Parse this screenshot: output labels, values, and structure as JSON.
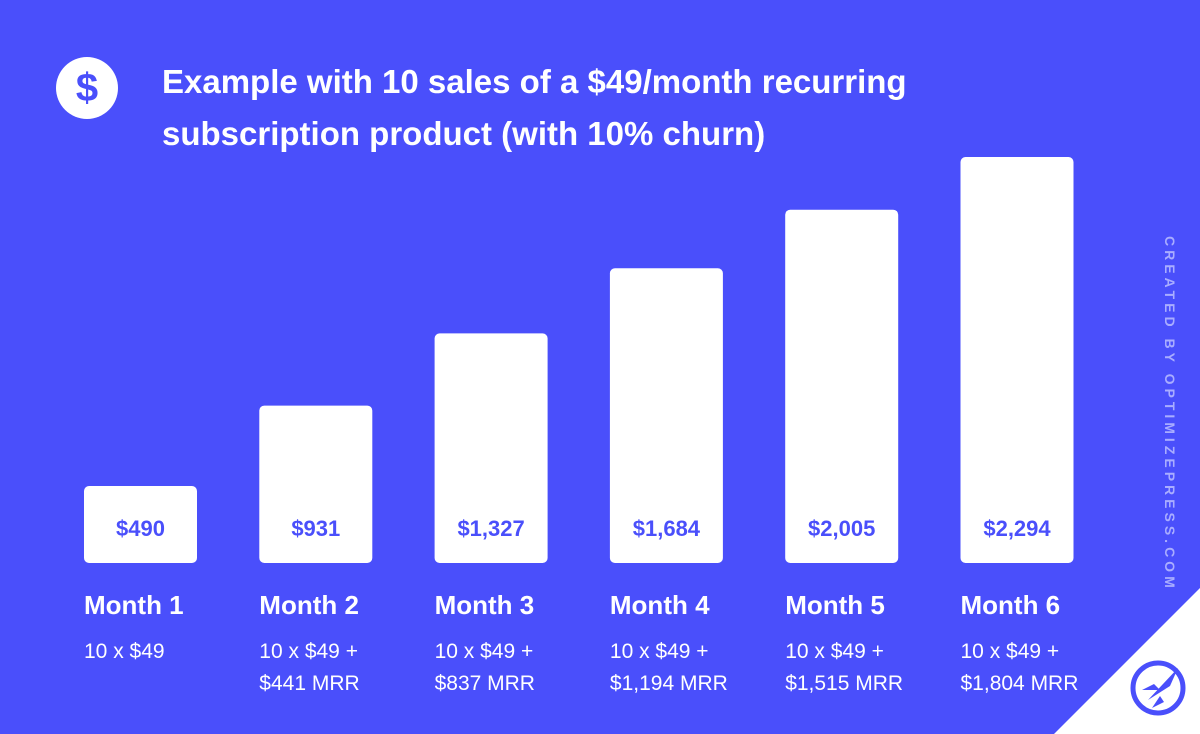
{
  "title_lines": [
    "Example with 10 sales of a $49/month recurring",
    "subscription product (with 10% churn)"
  ],
  "badge_symbol": "$",
  "credit": "CREATED BY OPTIMIZEPRESS.COM",
  "icons": {
    "badge": "dollar-icon",
    "logo": "rocket-logo-icon"
  },
  "colors": {
    "background": "#4a4ffb",
    "bar": "#ffffff",
    "value_text": "#4a4ffb",
    "credit_text": "#a9adff"
  },
  "chart_data": {
    "type": "bar",
    "title": "Example with 10 sales of a $49/month recurring subscription product (with 10% churn)",
    "categories": [
      "Month 1",
      "Month 2",
      "Month 3",
      "Month 4",
      "Month 5",
      "Month 6"
    ],
    "values": [
      490,
      931,
      1327,
      1684,
      2005,
      2294
    ],
    "value_labels": [
      "$490",
      "$931",
      "$1,327",
      "$1,684",
      "$2,005",
      "$2,294"
    ],
    "notes": [
      [
        "10 x $49"
      ],
      [
        "10 x $49 +",
        "$441 MRR"
      ],
      [
        "10 x $49 +",
        "$837 MRR"
      ],
      [
        "10 x $49 +",
        "$1,194 MRR"
      ],
      [
        "10 x $49 +",
        "$1,515 MRR"
      ],
      [
        "10 x $49 +",
        "$1,804 MRR"
      ]
    ],
    "xlabel": "",
    "ylabel": "",
    "grid": false,
    "legend": "none"
  }
}
